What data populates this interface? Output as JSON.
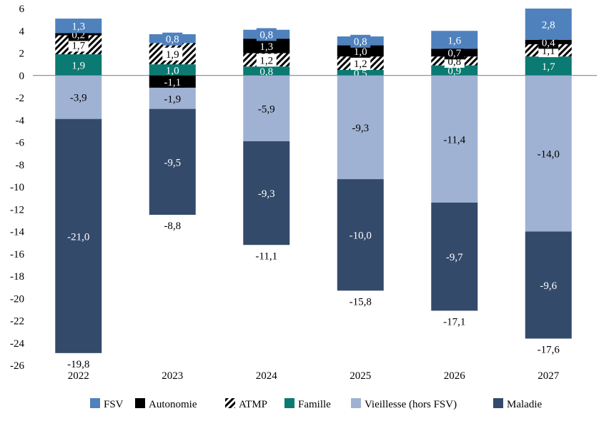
{
  "chart_data": {
    "type": "bar",
    "stacked": true,
    "title": "",
    "xlabel": "",
    "ylabel": "",
    "ylim": [
      -26,
      6
    ],
    "yticks": [
      6,
      4,
      2,
      0,
      -2,
      -4,
      -6,
      -8,
      -10,
      -12,
      -14,
      -16,
      -18,
      -20,
      -22,
      -24,
      -26
    ],
    "grid": false,
    "legend_position": "bottom",
    "categories": [
      "2022",
      "2023",
      "2024",
      "2025",
      "2026",
      "2027"
    ],
    "series": [
      {
        "name": "FSV",
        "color": "#4f81bd",
        "values": [
          1.3,
          0.8,
          0.8,
          0.8,
          1.6,
          2.8
        ]
      },
      {
        "name": "Autonomie",
        "color": "#000000",
        "values": [
          0.2,
          -1.1,
          1.3,
          1.0,
          0.7,
          0.4
        ]
      },
      {
        "name": "ATMP",
        "color": "hatch",
        "values": [
          1.7,
          1.9,
          1.2,
          1.2,
          0.8,
          1.1
        ]
      },
      {
        "name": "Famille",
        "color": "#0b7a72",
        "values": [
          1.9,
          1.0,
          0.8,
          0.5,
          0.9,
          1.7
        ]
      },
      {
        "name": "Vieillesse (hors FSV)",
        "color": "#9fb2d3",
        "values": [
          -3.9,
          -1.9,
          -5.9,
          -9.3,
          -11.4,
          -14.0
        ]
      },
      {
        "name": "Maladie",
        "color": "#344a6b",
        "values": [
          -21.0,
          -9.5,
          -9.3,
          -10.0,
          -9.7,
          -9.6
        ]
      }
    ],
    "totals": [
      -19.8,
      -8.8,
      -11.1,
      -15.8,
      -17.1,
      -17.6
    ],
    "decimal_separator": ","
  }
}
